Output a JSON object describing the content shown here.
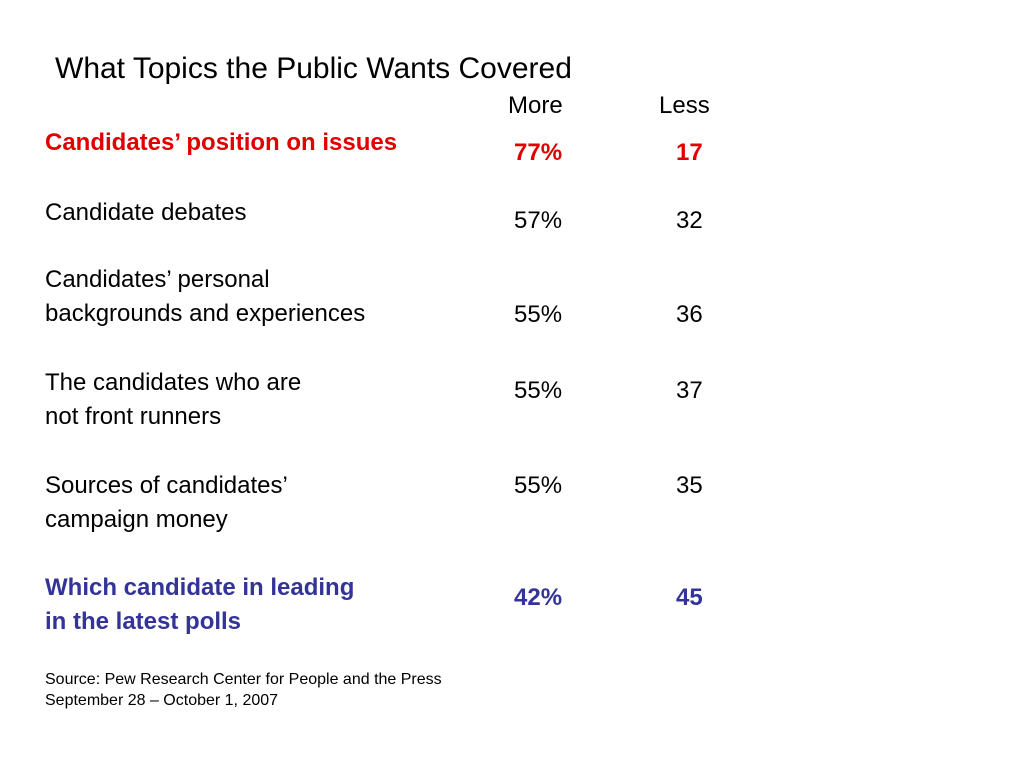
{
  "chart_data": {
    "type": "table",
    "title": "What Topics the Public Wants Covered",
    "columns": [
      "More",
      "Less"
    ],
    "rows": [
      {
        "label": [
          "Candidates’ position on issues"
        ],
        "more": "77%",
        "less": "17",
        "more_value": 77,
        "less_value": 17,
        "color": "#e00000"
      },
      {
        "label": [
          "Candidate debates"
        ],
        "more": "57%",
        "less": "32",
        "more_value": 57,
        "less_value": 32,
        "color": "#000000"
      },
      {
        "label": [
          "Candidates’ personal",
          "backgrounds and experiences"
        ],
        "more": "55%",
        "less": "36",
        "more_value": 55,
        "less_value": 36,
        "color": "#000000"
      },
      {
        "label": [
          "The candidates who are",
          "not front runners"
        ],
        "more": "55%",
        "less": "37",
        "more_value": 55,
        "less_value": 37,
        "color": "#000000"
      },
      {
        "label": [
          "Sources of candidates’",
          "campaign money"
        ],
        "more": "55%",
        "less": "35",
        "more_value": 55,
        "less_value": 35,
        "color": "#000000"
      },
      {
        "label": [
          "Which candidate in leading",
          "in the latest polls"
        ],
        "more": "42%",
        "less": "45",
        "more_value": 42,
        "less_value": 45,
        "color": "#333399"
      }
    ],
    "source": [
      "Source: Pew Research Center for People and the Press",
      "September 28 – October 1, 2007"
    ]
  }
}
